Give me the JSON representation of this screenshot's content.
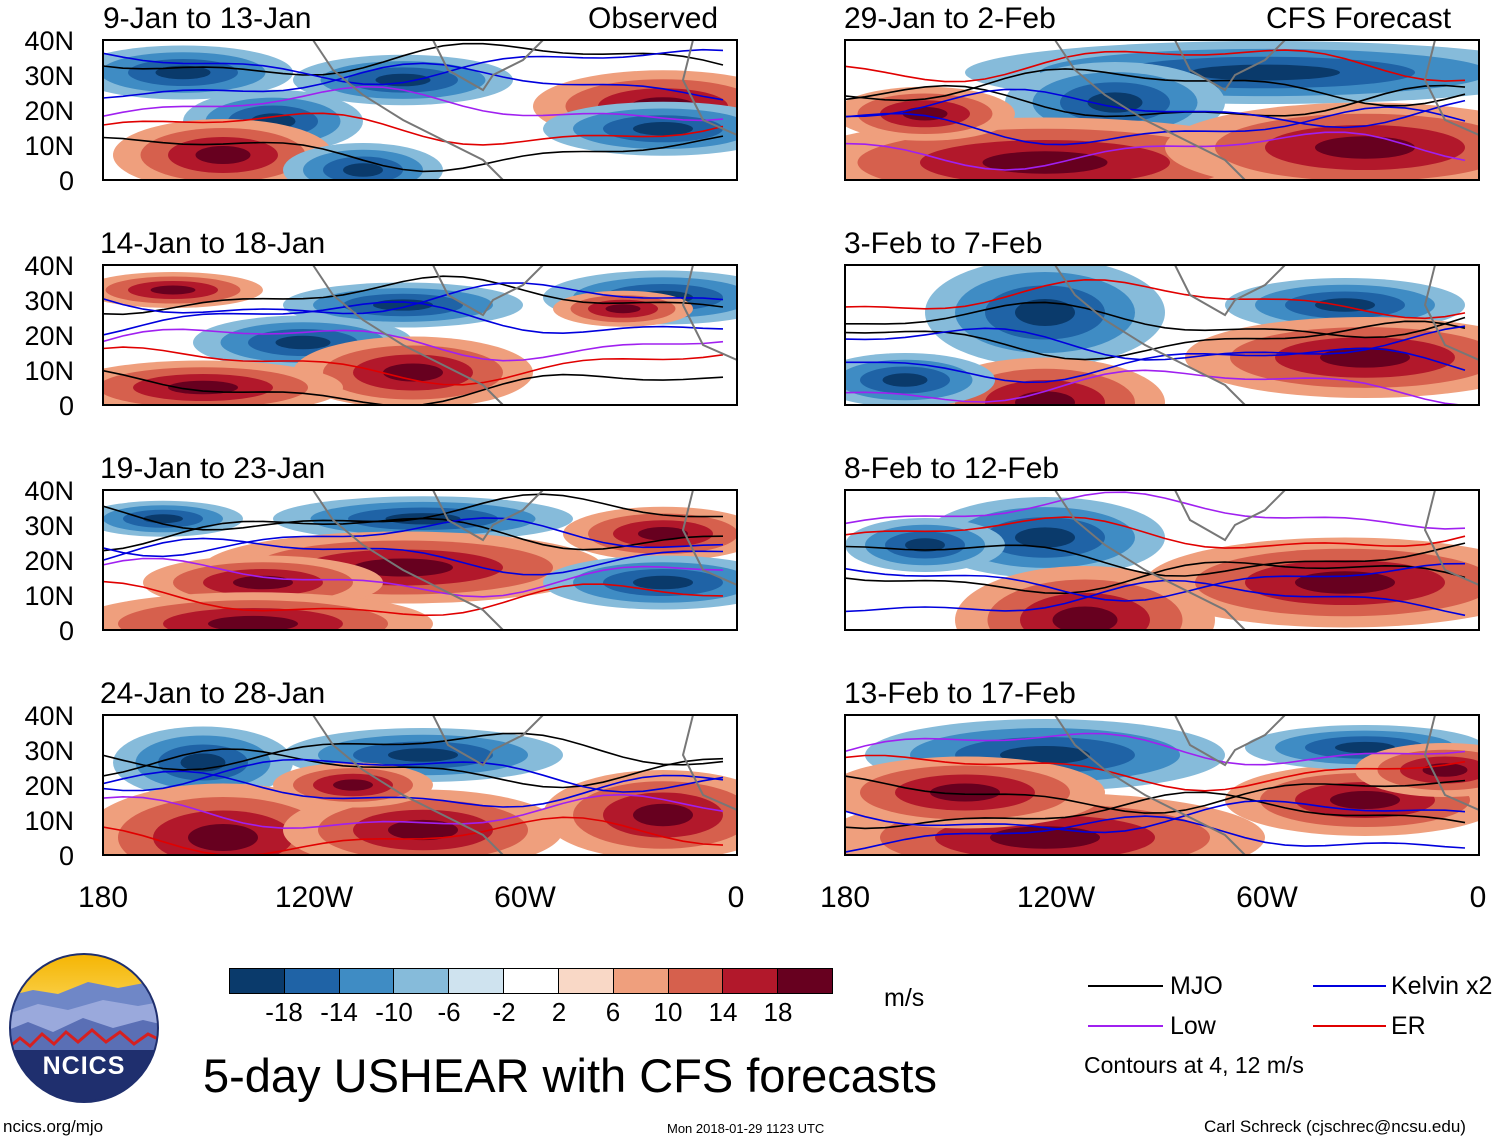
{
  "header": {
    "left_label": "Observed",
    "right_label": "CFS Forecast"
  },
  "panels_left": [
    {
      "title": "9-Jan to 13-Jan"
    },
    {
      "title": "14-Jan to 18-Jan"
    },
    {
      "title": "19-Jan to 23-Jan"
    },
    {
      "title": "24-Jan to 28-Jan"
    }
  ],
  "panels_right": [
    {
      "title": "29-Jan to 2-Feb"
    },
    {
      "title": "3-Feb to 7-Feb"
    },
    {
      "title": "8-Feb to 12-Feb"
    },
    {
      "title": "13-Feb to 17-Feb"
    }
  ],
  "lat_labels": [
    "40N",
    "30N",
    "20N",
    "10N",
    "0"
  ],
  "lon_labels": [
    "180",
    "120W",
    "60W",
    "0"
  ],
  "colorbar": {
    "colors": [
      "#0a3a6b",
      "#1f63a6",
      "#3f8cc4",
      "#86bbda",
      "#cfe3ef",
      "#ffffff",
      "#f9d8c6",
      "#ef9f7d",
      "#d6604d",
      "#b2182b",
      "#67001f"
    ],
    "labels": [
      "-18",
      "-14",
      "-10",
      "-6",
      "-2",
      "2",
      "6",
      "10",
      "14",
      "18"
    ],
    "units": "m/s"
  },
  "legend": {
    "items": [
      {
        "label": "MJO",
        "color": "#000000"
      },
      {
        "label": "Kelvin x2",
        "color": "#0000dd"
      },
      {
        "label": "Low",
        "color": "#a020f0"
      },
      {
        "label": "ER",
        "color": "#e00000"
      }
    ],
    "note": "Contours at 4, 12 m/s"
  },
  "logo": {
    "text": "NCICS"
  },
  "title": "5-day USHEAR with CFS forecasts",
  "footer": {
    "left": "ncics.org/mjo",
    "center": "Mon 2018-01-29 1123 UTC",
    "right": "Carl Schreck (cjschrec@ncsu.edu)"
  }
}
